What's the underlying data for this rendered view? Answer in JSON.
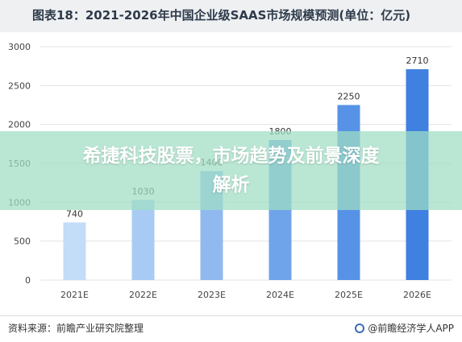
{
  "header": {
    "title": "图表18：2021-2026年中国企业级SAAS市场规模预测(单位：亿元)"
  },
  "overlay": {
    "line1": "希捷科技股票，市场趋势及前景深度",
    "line2": "解析"
  },
  "footer": {
    "source": "资料来源：前瞻产业研究院整理",
    "brand": "@前瞻经济学人APP"
  },
  "colors": {
    "bars": [
      "#c3dcf7",
      "#a9cbf3",
      "#8fb9ef",
      "#6fa4ea",
      "#5692e6",
      "#3f80e0"
    ],
    "gridline": "#e3e3e3",
    "axis_text": "#444444"
  },
  "chart_data": {
    "type": "bar",
    "title": "图表18：2021-2026年中国企业级SAAS市场规模预测(单位：亿元)",
    "categories": [
      "2021E",
      "2022E",
      "2023E",
      "2024E",
      "2025E",
      "2026E"
    ],
    "values": [
      740,
      1030,
      1400,
      1800,
      2250,
      2710
    ],
    "value_labels": [
      "740",
      "1030",
      "1400",
      "1800",
      "2250",
      "2710"
    ],
    "ylim": [
      0,
      3000
    ],
    "yticks": [
      "0",
      "500",
      "1000",
      "1500",
      "2000",
      "2500",
      "3000"
    ],
    "grid": true,
    "xlabel": "",
    "ylabel": ""
  }
}
